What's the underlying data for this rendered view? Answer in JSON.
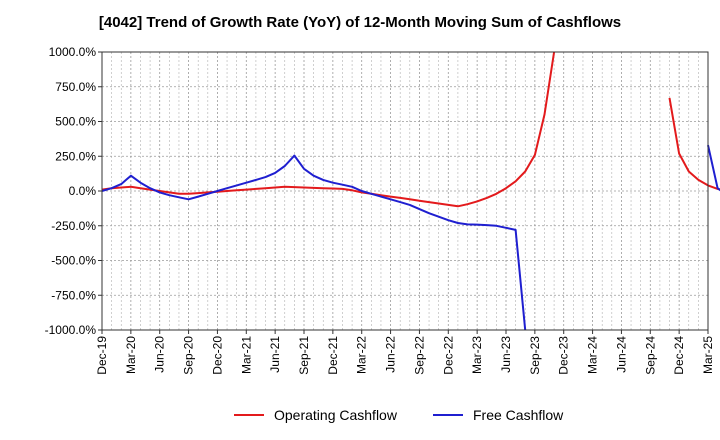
{
  "chart_data": {
    "type": "line",
    "title": "[4042]  Trend of Growth Rate (YoY) of 12-Month Moving Sum of Cashflows",
    "xlabel": "",
    "ylabel": "",
    "ylim": [
      -1000,
      1000
    ],
    "y_ticks": [
      1000,
      750,
      500,
      250,
      0,
      -250,
      -500,
      -750,
      -1000
    ],
    "y_tick_labels": [
      "1000.0%",
      "750.0%",
      "500.0%",
      "250.0%",
      "0.0%",
      "-250.0%",
      "-500.0%",
      "-750.0%",
      "-1000.0%"
    ],
    "x_ticks": [
      "Dec-19",
      "Mar-20",
      "Jun-20",
      "Sep-20",
      "Dec-20",
      "Mar-21",
      "Jun-21",
      "Sep-21",
      "Dec-21",
      "Mar-22",
      "Jun-22",
      "Sep-22",
      "Dec-22",
      "Mar-23",
      "Jun-23",
      "Sep-23",
      "Dec-23",
      "Mar-24",
      "Jun-24",
      "Sep-24",
      "Dec-24",
      "Mar-25"
    ],
    "grid": true,
    "legend_position": "bottom",
    "series": [
      {
        "name": "Operating Cashflow",
        "color": "#e31a1c",
        "values": [
          10,
          20,
          25,
          30,
          20,
          10,
          0,
          -10,
          -20,
          -20,
          -15,
          -10,
          -5,
          0,
          5,
          10,
          15,
          20,
          25,
          30,
          28,
          25,
          22,
          20,
          18,
          15,
          5,
          -10,
          -20,
          -30,
          -40,
          -50,
          -60,
          -70,
          -80,
          -90,
          -100,
          -110,
          -95,
          -75,
          -50,
          -20,
          20,
          70,
          140,
          260,
          550,
          1000,
          null,
          null,
          null,
          null,
          null,
          null,
          null,
          null,
          null,
          null,
          null,
          670,
          270,
          140,
          80,
          40,
          15,
          0,
          -20
        ],
        "x_index_start": 0
      },
      {
        "name": "Free Cashflow",
        "color": "#1f1fd0",
        "values": [
          0,
          20,
          50,
          110,
          60,
          20,
          -10,
          -30,
          -45,
          -60,
          -40,
          -20,
          0,
          20,
          40,
          60,
          80,
          100,
          130,
          180,
          255,
          160,
          110,
          80,
          60,
          45,
          30,
          0,
          -20,
          -40,
          -60,
          -80,
          -100,
          -130,
          -160,
          -185,
          -210,
          -230,
          -240,
          -242,
          -245,
          -250,
          -265,
          -280,
          -1000
        ],
        "x_index_start": 0,
        "tail_segment": {
          "x_index_start": 63,
          "values": [
            330,
            20,
            -30,
            -100
          ]
        }
      }
    ]
  }
}
